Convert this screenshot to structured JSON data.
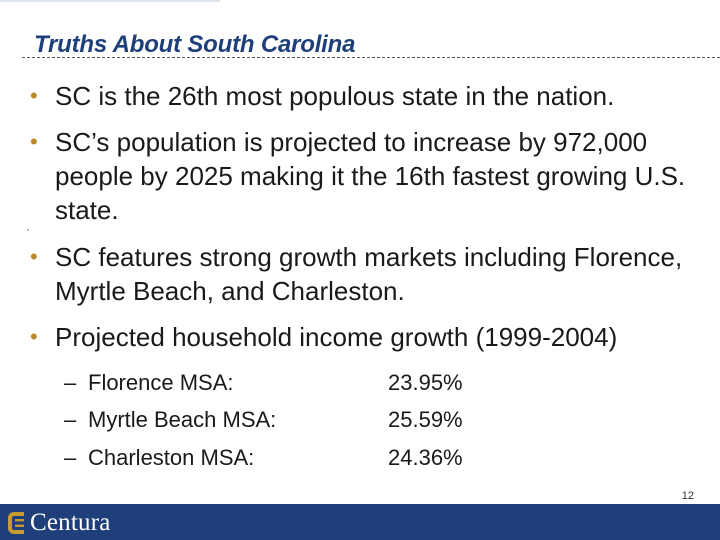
{
  "title": "Truths About South Carolina",
  "bullets": [
    {
      "marker": "•",
      "text": "SC is the 26th most populous state in the nation."
    },
    {
      "marker": "•",
      "text": "SC’s population is projected to increase by 972,000 people by 2025 making it the 16th fastest growing U.S. state."
    },
    {
      "marker": "•",
      "text": "SC features strong growth markets including Florence, Myrtle Beach, and Charleston."
    },
    {
      "marker": "•",
      "text": "Projected household income growth (1999-2004)"
    }
  ],
  "income_growth": [
    {
      "dash": "–",
      "label": "Florence MSA:",
      "value": "23.95%"
    },
    {
      "dash": "–",
      "label": "Myrtle Beach MSA:",
      "value": "25.59%"
    },
    {
      "dash": "–",
      "label": "Charleston MSA:",
      "value": "24.36%"
    }
  ],
  "page_number": "12",
  "footer": {
    "brand_name": "Centura",
    "logo_icon": "centura-logo-icon",
    "colors": {
      "brand_blue": "#1f3f7a",
      "logo_gold": "#c99a2e"
    }
  }
}
